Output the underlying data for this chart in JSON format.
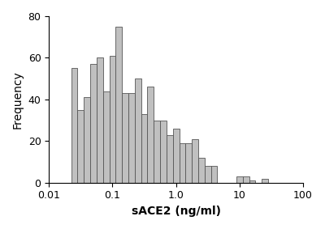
{
  "bar_edges": [
    0.01778,
    0.02239,
    0.02818,
    0.03548,
    0.04467,
    0.05623,
    0.07079,
    0.08913,
    0.1122,
    0.1413,
    0.1778,
    0.2239,
    0.2818,
    0.3548,
    0.4467,
    0.5623,
    0.7079,
    0.8913,
    1.122,
    1.413,
    1.778,
    2.239,
    2.818,
    3.548,
    4.467,
    5.623,
    7.079,
    8.913,
    11.22,
    14.13,
    17.78,
    22.39,
    28.18,
    35.48
  ],
  "frequencies": [
    0,
    55,
    35,
    41,
    57,
    60,
    44,
    61,
    75,
    43,
    43,
    50,
    33,
    46,
    30,
    30,
    23,
    26,
    19,
    19,
    21,
    12,
    8,
    8,
    0,
    0,
    0,
    3,
    3,
    1,
    0,
    2,
    0
  ],
  "bar_color": "#c0c0c0",
  "bar_edgecolor": "#555555",
  "xlabel": "sACE2 (ng/ml)",
  "ylabel": "Frequency",
  "xlim": [
    0.01,
    100
  ],
  "ylim": [
    0,
    80
  ],
  "yticks": [
    0,
    20,
    40,
    60,
    80
  ],
  "xticks": [
    0.01,
    0.1,
    1.0,
    10,
    100
  ],
  "xtick_labels": [
    "0.01",
    "0.1",
    "1.0",
    "10",
    "100"
  ],
  "background_color": "#ffffff",
  "xlabel_fontsize": 10,
  "ylabel_fontsize": 10,
  "tick_fontsize": 9,
  "xlabel_bold": true,
  "linewidth": 0.6
}
